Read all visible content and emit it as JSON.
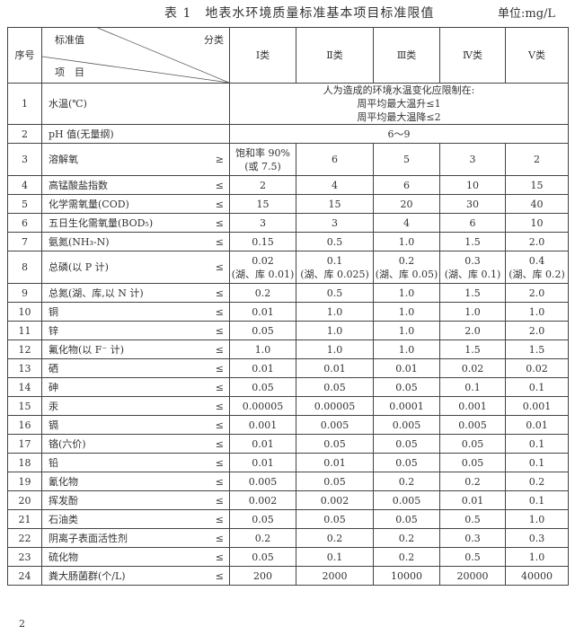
{
  "title": "表 1　地表水环境质量标准基本项目标准限值",
  "unit": "单位:mg/L",
  "header": {
    "seq": "序号",
    "standard": "标准值",
    "category": "分类",
    "item": "项　目",
    "classes": [
      "Ⅰ类",
      "Ⅱ类",
      "Ⅲ类",
      "Ⅳ类",
      "Ⅴ类"
    ]
  },
  "water_temp": {
    "seq": "1",
    "name": "水温(℃)",
    "lines": [
      "人为造成的环境水温变化应限制在:",
      "周平均最大温升≤1",
      "周平均最大温降≤2"
    ]
  },
  "ph": {
    "seq": "2",
    "name": "pH 值(无量纲)",
    "value": "6～9"
  },
  "rows": [
    {
      "seq": "3",
      "name": "溶解氧",
      "sign": "≥",
      "values": [
        "饱和率 90%\n(或 7.5)",
        "6",
        "5",
        "3",
        "2"
      ]
    },
    {
      "seq": "4",
      "name": "高锰酸盐指数",
      "sign": "≤",
      "values": [
        "2",
        "4",
        "6",
        "10",
        "15"
      ]
    },
    {
      "seq": "5",
      "name": "化学需氧量(COD)",
      "sign": "≤",
      "values": [
        "15",
        "15",
        "20",
        "30",
        "40"
      ]
    },
    {
      "seq": "6",
      "name": "五日生化需氧量(BOD₅)",
      "sign": "≤",
      "values": [
        "3",
        "3",
        "4",
        "6",
        "10"
      ]
    },
    {
      "seq": "7",
      "name": "氨氮(NH₃-N)",
      "sign": "≤",
      "values": [
        "0.15",
        "0.5",
        "1.0",
        "1.5",
        "2.0"
      ]
    },
    {
      "seq": "8",
      "name": "总磷(以 P 计)",
      "sign": "≤",
      "values": [
        "0.02\n(湖、库 0.01)",
        "0.1\n(湖、库 0.025)",
        "0.2\n(湖、库 0.05)",
        "0.3\n(湖、库 0.1)",
        "0.4\n(湖、库 0.2)"
      ]
    },
    {
      "seq": "9",
      "name": "总氮(湖、库,以 N 计)",
      "sign": "≤",
      "values": [
        "0.2",
        "0.5",
        "1.0",
        "1.5",
        "2.0"
      ]
    },
    {
      "seq": "10",
      "name": "铜",
      "sign": "≤",
      "values": [
        "0.01",
        "1.0",
        "1.0",
        "1.0",
        "1.0"
      ]
    },
    {
      "seq": "11",
      "name": "锌",
      "sign": "≤",
      "values": [
        "0.05",
        "1.0",
        "1.0",
        "2.0",
        "2.0"
      ]
    },
    {
      "seq": "12",
      "name": "氟化物(以 F⁻ 计)",
      "sign": "≤",
      "values": [
        "1.0",
        "1.0",
        "1.0",
        "1.5",
        "1.5"
      ]
    },
    {
      "seq": "13",
      "name": "硒",
      "sign": "≤",
      "values": [
        "0.01",
        "0.01",
        "0.01",
        "0.02",
        "0.02"
      ]
    },
    {
      "seq": "14",
      "name": "砷",
      "sign": "≤",
      "values": [
        "0.05",
        "0.05",
        "0.05",
        "0.1",
        "0.1"
      ]
    },
    {
      "seq": "15",
      "name": "汞",
      "sign": "≤",
      "values": [
        "0.00005",
        "0.00005",
        "0.0001",
        "0.001",
        "0.001"
      ]
    },
    {
      "seq": "16",
      "name": "镉",
      "sign": "≤",
      "values": [
        "0.001",
        "0.005",
        "0.005",
        "0.005",
        "0.01"
      ]
    },
    {
      "seq": "17",
      "name": "铬(六价)",
      "sign": "≤",
      "values": [
        "0.01",
        "0.05",
        "0.05",
        "0.05",
        "0.1"
      ]
    },
    {
      "seq": "18",
      "name": "铅",
      "sign": "≤",
      "values": [
        "0.01",
        "0.01",
        "0.05",
        "0.05",
        "0.1"
      ]
    },
    {
      "seq": "19",
      "name": "氰化物",
      "sign": "≤",
      "values": [
        "0.005",
        "0.05",
        "0.2",
        "0.2",
        "0.2"
      ]
    },
    {
      "seq": "20",
      "name": "挥发酚",
      "sign": "≤",
      "values": [
        "0.002",
        "0.002",
        "0.005",
        "0.01",
        "0.1"
      ]
    },
    {
      "seq": "21",
      "name": "石油类",
      "sign": "≤",
      "values": [
        "0.05",
        "0.05",
        "0.05",
        "0.5",
        "1.0"
      ]
    },
    {
      "seq": "22",
      "name": "阴离子表面活性剂",
      "sign": "≤",
      "values": [
        "0.2",
        "0.2",
        "0.2",
        "0.3",
        "0.3"
      ]
    },
    {
      "seq": "23",
      "name": "硫化物",
      "sign": "≤",
      "values": [
        "0.05",
        "0.1",
        "0.2",
        "0.5",
        "1.0"
      ]
    },
    {
      "seq": "24",
      "name": "粪大肠菌群(个/L)",
      "sign": "≤",
      "values": [
        "200",
        "2000",
        "10000",
        "20000",
        "40000"
      ]
    }
  ],
  "page_number": "2"
}
